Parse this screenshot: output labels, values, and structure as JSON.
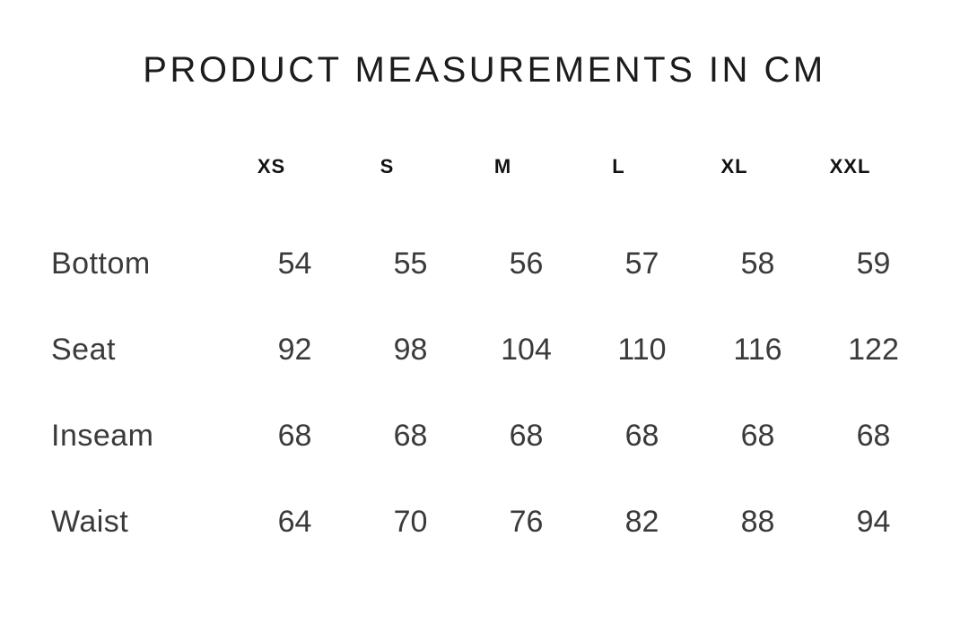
{
  "page": {
    "background_color": "#ffffff",
    "title_color": "#1c1c1c",
    "header_color": "#121212",
    "value_color": "#3a3a3a"
  },
  "chart_data": {
    "type": "table",
    "title": "PRODUCT MEASUREMENTS IN CM",
    "unit": "cm",
    "columns": [
      "XS",
      "S",
      "M",
      "L",
      "XL",
      "XXL"
    ],
    "rows": [
      {
        "label": "Bottom",
        "values": [
          54,
          55,
          56,
          57,
          58,
          59
        ]
      },
      {
        "label": "Seat",
        "values": [
          92,
          98,
          104,
          110,
          116,
          122
        ]
      },
      {
        "label": "Inseam",
        "values": [
          68,
          68,
          68,
          68,
          68,
          68
        ]
      },
      {
        "label": "Waist",
        "values": [
          64,
          70,
          76,
          82,
          88,
          94
        ]
      }
    ]
  }
}
